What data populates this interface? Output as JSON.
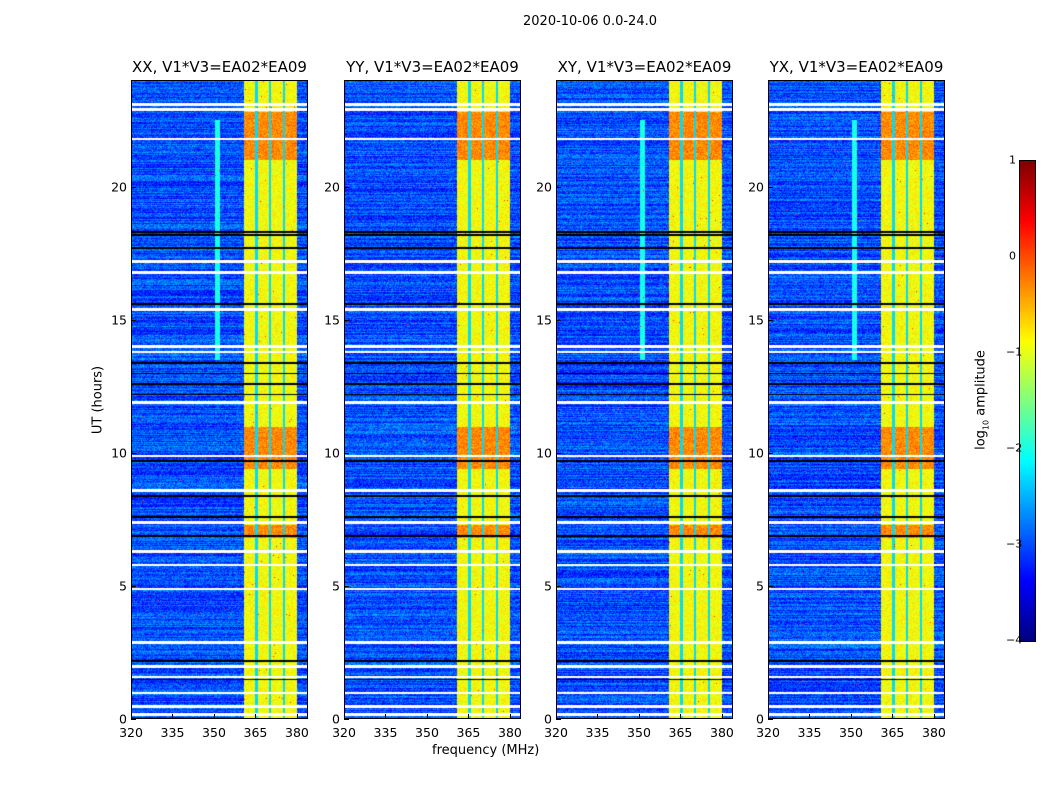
{
  "suptitle": "2020-10-06 0.0-24.0",
  "chart_data": {
    "type": "heatmap",
    "title": "2020-10-06 0.0-24.0",
    "xlabel": "frequency (MHz)",
    "ylabel": "UT (hours)",
    "xlim": [
      320,
      384
    ],
    "ylim": [
      0,
      24
    ],
    "xticks": [
      "320",
      "335",
      "350",
      "365",
      "380"
    ],
    "xtick_values": [
      320,
      335,
      350,
      365,
      380
    ],
    "yticks": [
      "0",
      "5",
      "10",
      "15",
      "20"
    ],
    "ytick_values": [
      0,
      5,
      10,
      15,
      20
    ],
    "panels": [
      {
        "title": "XX, V1*V3=EA02*EA09",
        "line_351": true
      },
      {
        "title": "YY, V1*V3=EA02*EA09",
        "line_351": false
      },
      {
        "title": "XY, V1*V3=EA02*EA09",
        "line_351": true
      },
      {
        "title": "YX, V1*V3=EA02*EA09",
        "line_351": true
      }
    ],
    "background_log10_amplitude": -3.0,
    "bright_band_mhz": [
      360.5,
      380
    ],
    "band_gaps_mhz": [
      365.2,
      370.2,
      375.2
    ],
    "band_log10_amplitude": -0.9,
    "strong_rfi_hours": [
      [
        6.8,
        7.3
      ],
      [
        9.4,
        11.0
      ],
      [
        21.0,
        22.8
      ]
    ],
    "flagged_white_hours": [
      0.2,
      0.5,
      1.0,
      1.6,
      2.0,
      2.9,
      4.9,
      5.8,
      6.3,
      7.4,
      8.6,
      9.9,
      11.9,
      13.8,
      14.0,
      15.4,
      16.8,
      17.2,
      21.8,
      22.9,
      23.1
    ],
    "zero_black_hours": [
      1.5,
      2.2,
      6.9,
      7.6,
      8.4,
      9.7,
      12.2,
      12.6,
      13.0,
      13.4,
      15.6,
      17.7,
      18.2,
      18.3
    ],
    "colorbar": {
      "label": "log10 amplitude",
      "label_main": "log",
      "label_sub": "10",
      "label_rest": " amplitude",
      "range": [
        -4,
        1
      ],
      "ticks": [
        "1",
        "0",
        "−1",
        "−2",
        "−3",
        "−4"
      ],
      "tick_values": [
        1,
        0,
        -1,
        -2,
        -3,
        -4
      ],
      "colormap": "jet"
    }
  }
}
